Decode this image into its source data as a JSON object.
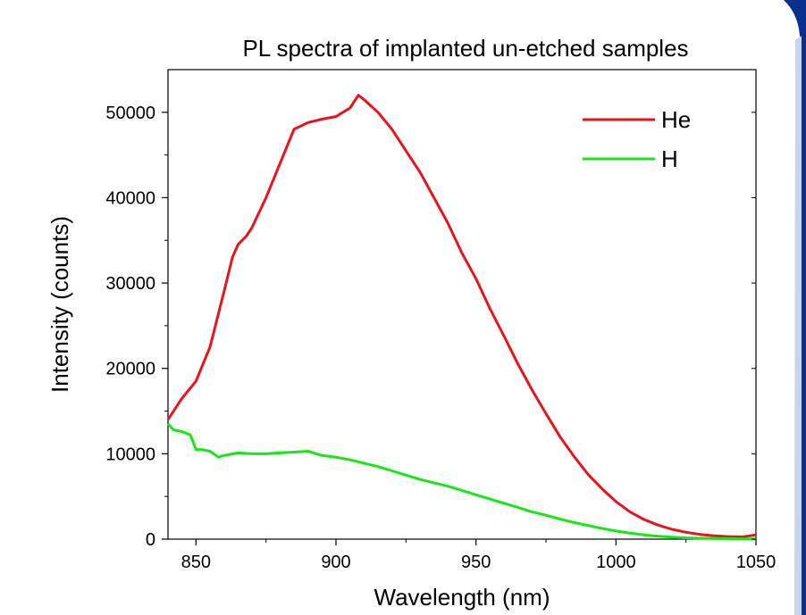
{
  "chart_data": {
    "type": "line",
    "title": "PL spectra of implanted un-etched samples",
    "xlabel": "Wavelength (nm)",
    "ylabel": "Intensity (counts)",
    "xlim": [
      840,
      1050
    ],
    "ylim": [
      0,
      55000
    ],
    "xticks": [
      850,
      900,
      950,
      1000,
      1050
    ],
    "yticks": [
      0,
      10000,
      20000,
      30000,
      40000,
      50000
    ],
    "grid": false,
    "legend_position": "top-right",
    "series": [
      {
        "name": "He",
        "color": "#e8141c",
        "x": [
          840,
          845,
          850,
          855,
          860,
          863,
          865,
          868,
          870,
          875,
          880,
          885,
          890,
          895,
          900,
          905,
          908,
          910,
          915,
          920,
          925,
          930,
          935,
          940,
          945,
          950,
          955,
          960,
          965,
          970,
          975,
          980,
          985,
          990,
          995,
          1000,
          1005,
          1010,
          1015,
          1020,
          1025,
          1030,
          1035,
          1040,
          1045,
          1050
        ],
        "y": [
          14000,
          16500,
          18500,
          22500,
          29000,
          33000,
          34500,
          35500,
          36500,
          40000,
          44000,
          48000,
          48800,
          49200,
          49500,
          50500,
          52000,
          51500,
          50000,
          48000,
          45500,
          43000,
          40000,
          37000,
          33500,
          30500,
          27000,
          23800,
          20500,
          17500,
          14700,
          12000,
          9700,
          7600,
          5900,
          4400,
          3200,
          2300,
          1650,
          1150,
          800,
          550,
          400,
          300,
          250,
          500
        ]
      },
      {
        "name": "H",
        "color": "#19e619",
        "x": [
          840,
          842,
          845,
          848,
          850,
          852,
          855,
          858,
          860,
          865,
          870,
          875,
          880,
          885,
          890,
          893,
          895,
          900,
          905,
          910,
          915,
          920,
          925,
          930,
          935,
          940,
          945,
          950,
          955,
          960,
          965,
          970,
          975,
          980,
          985,
          990,
          995,
          1000,
          1005,
          1010,
          1015,
          1020,
          1025,
          1030,
          1035,
          1040,
          1045,
          1050
        ],
        "y": [
          13500,
          12800,
          12600,
          12200,
          10500,
          10500,
          10300,
          9600,
          9800,
          10100,
          10000,
          10000,
          10100,
          10200,
          10300,
          10000,
          9800,
          9600,
          9300,
          8900,
          8500,
          8000,
          7500,
          7000,
          6600,
          6200,
          5700,
          5200,
          4700,
          4200,
          3700,
          3200,
          2800,
          2350,
          1950,
          1600,
          1250,
          950,
          700,
          500,
          350,
          230,
          150,
          100,
          70,
          50,
          30,
          20
        ]
      }
    ]
  },
  "colors": {
    "decor_navy": "#0b2f8c",
    "decor_light": "#c9d4ee"
  }
}
